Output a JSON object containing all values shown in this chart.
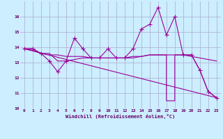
{
  "xlabel": "Windchill (Refroidissement éolien,°C)",
  "background_color": "#cceeff",
  "grid_color": "#aaaacc",
  "line_color": "#990099",
  "xlim": [
    -0.5,
    23.5
  ],
  "ylim": [
    10,
    17
  ],
  "x_ticks": [
    0,
    1,
    2,
    3,
    4,
    5,
    6,
    7,
    8,
    9,
    10,
    11,
    12,
    13,
    14,
    15,
    16,
    17,
    18,
    19,
    20,
    21,
    22,
    23
  ],
  "y_ticks": [
    10,
    11,
    12,
    13,
    14,
    15,
    16
  ],
  "series": {
    "line1_x": [
      0,
      1,
      2,
      3,
      4,
      5,
      6,
      7,
      8,
      9,
      10,
      11,
      12,
      13,
      14,
      15,
      16,
      17,
      18,
      19,
      20,
      21,
      22,
      23
    ],
    "line1_y": [
      13.9,
      13.9,
      13.6,
      13.1,
      12.4,
      13.1,
      14.6,
      13.9,
      13.3,
      13.3,
      13.9,
      13.3,
      13.3,
      13.9,
      15.2,
      15.5,
      16.6,
      14.8,
      16.0,
      13.5,
      13.5,
      12.5,
      11.1,
      10.7
    ],
    "line2_x": [
      0,
      1,
      2,
      3,
      4,
      5,
      6,
      7,
      8,
      9,
      10,
      11,
      12,
      13,
      14,
      15,
      16,
      17,
      18,
      19,
      20,
      21,
      22,
      23
    ],
    "line2_y": [
      13.9,
      13.8,
      13.6,
      13.5,
      13.5,
      13.4,
      13.4,
      13.4,
      13.3,
      13.3,
      13.3,
      13.3,
      13.3,
      13.4,
      13.4,
      13.5,
      13.5,
      13.5,
      13.5,
      13.5,
      13.4,
      13.3,
      13.2,
      13.1
    ],
    "line3_x": [
      0,
      23
    ],
    "line3_y": [
      13.9,
      10.7
    ],
    "line4_x": [
      0,
      1,
      2,
      3,
      4,
      5,
      6,
      7,
      8,
      9,
      10,
      11,
      12,
      13,
      14,
      15,
      16,
      17,
      17,
      18,
      18,
      19,
      20,
      21,
      22,
      23
    ],
    "line4_y": [
      13.9,
      13.9,
      13.6,
      13.6,
      13.1,
      13.1,
      13.2,
      13.3,
      13.3,
      13.3,
      13.3,
      13.3,
      13.3,
      13.3,
      13.4,
      13.5,
      13.5,
      13.5,
      10.5,
      10.5,
      13.5,
      13.5,
      13.5,
      12.5,
      11.1,
      10.7
    ]
  }
}
